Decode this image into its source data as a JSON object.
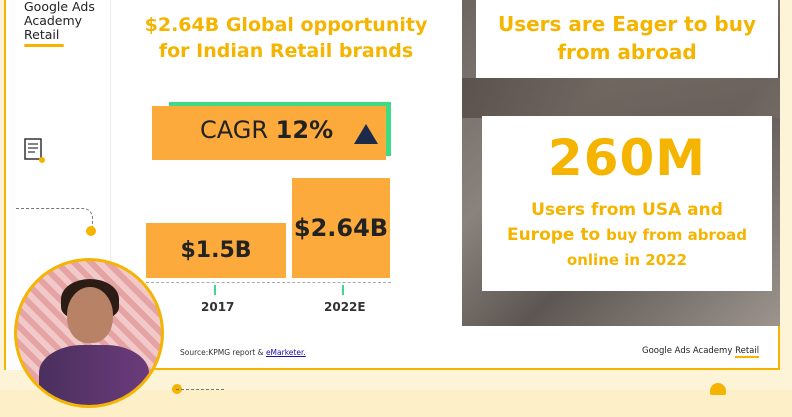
{
  "brand": {
    "line1": "Google Ads",
    "line2": "Academy",
    "line3": "Retail"
  },
  "headline": {
    "line1": "$2.64B Global opportunity",
    "line2": "for Indian Retail brands"
  },
  "cagr": {
    "label": "CAGR",
    "value": "12%"
  },
  "chart_data": {
    "type": "bar",
    "categories": [
      "2017",
      "2022E"
    ],
    "values": [
      1.5,
      2.64
    ],
    "labels": [
      "$1.5B",
      "$2.64B"
    ],
    "title": "$2.64B Global opportunity for Indian Retail brands",
    "annotation": "CAGR 12%"
  },
  "right": {
    "top_line1": "Users are Eager to buy",
    "top_line2": "from abroad",
    "big_number": "260M",
    "sub_line1": "Users from USA and",
    "sub_line2a": "Europe to",
    "sub_line2b": "buy from abroad",
    "sub_line3": "online in 2022"
  },
  "source": {
    "prefix": "Source:KPMG report &",
    "link": "eMarketer."
  },
  "footer_brand": {
    "prefix": "Google Ads Academy",
    "highlight": "Retail"
  },
  "colors": {
    "accent": "#f4b400",
    "bar": "#fbaa3b",
    "green": "#3ddc84",
    "navy": "#1b2a4a"
  }
}
